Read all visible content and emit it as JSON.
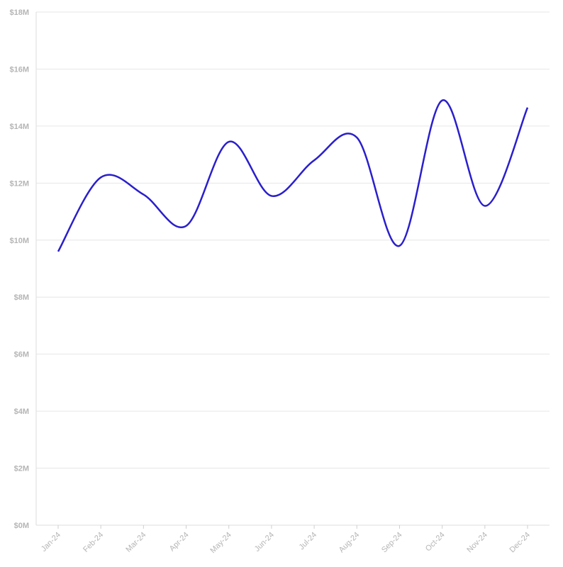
{
  "chart_data": {
    "type": "line",
    "title": "",
    "xlabel": "",
    "ylabel": "",
    "categories": [
      "Jan-24",
      "Feb-24",
      "Mar-24",
      "Apr-24",
      "May-24",
      "Jun-24",
      "Jul-24",
      "Aug-24",
      "Sep-24",
      "Oct-24",
      "Nov-24",
      "Dec-24"
    ],
    "series": [
      {
        "values": [
          9.6,
          12.2,
          11.6,
          10.5,
          13.45,
          11.55,
          12.8,
          13.6,
          9.8,
          14.9,
          11.2,
          14.65
        ]
      }
    ],
    "ylim": [
      0,
      18
    ],
    "yticks": [
      0,
      2,
      4,
      6,
      8,
      10,
      12,
      14,
      16,
      18
    ],
    "ytick_labels": [
      "$0M",
      "$2M",
      "$4M",
      "$6M",
      "$8M",
      "$10M",
      "$12M",
      "$14M",
      "$16M",
      "$18M"
    ],
    "grid": true,
    "legend": "none",
    "line_color": "#2a1fcc",
    "grid_color": "#e6e6e6",
    "tick_color": "#b5b5b5"
  }
}
